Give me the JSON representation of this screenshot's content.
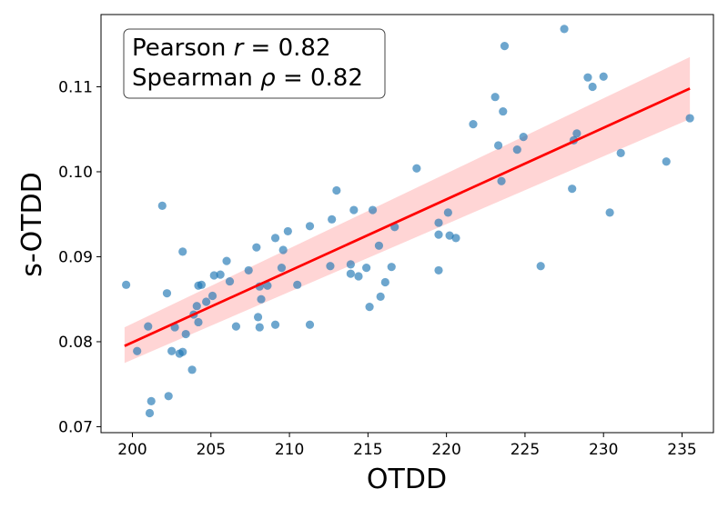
{
  "chart_data": {
    "type": "scatter",
    "title": "",
    "xlabel": "OTDD",
    "ylabel": "s-OTDD",
    "xlim": [
      198,
      237
    ],
    "ylim": [
      0.0693,
      0.1185
    ],
    "xticks": [
      200,
      205,
      210,
      215,
      220,
      225,
      230,
      235
    ],
    "yticks": [
      0.07,
      0.08,
      0.09,
      0.1,
      0.11
    ],
    "ytick_labels": [
      "0.07",
      "0.08",
      "0.09",
      "0.10",
      "0.11"
    ],
    "grid": false,
    "colors": {
      "points": "#1f77b4",
      "fit_line": "#ff0000",
      "confidence_band": "#ffb3b3"
    },
    "annotation": {
      "lines": [
        "Pearson r = 0.82",
        "Spearman ρ = 0.82"
      ],
      "pearson_prefix": "Pearson ",
      "pearson_symbol": "r",
      "pearson_value": " = 0.82",
      "spearman_prefix": "Spearman ",
      "spearman_symbol": "ρ",
      "spearman_value": " = 0.82",
      "placement": "top-left"
    },
    "fit": {
      "x": [
        199.5,
        235.5
      ],
      "y": [
        0.0795,
        0.1098
      ],
      "ci_lower": [
        0.0775,
        0.1062
      ],
      "ci_upper": [
        0.0817,
        0.1135
      ]
    },
    "points": [
      [
        199.6,
        0.0867
      ],
      [
        200.3,
        0.0789
      ],
      [
        201.0,
        0.0818
      ],
      [
        201.2,
        0.073
      ],
      [
        201.1,
        0.0716
      ],
      [
        201.9,
        0.096
      ],
      [
        202.2,
        0.0857
      ],
      [
        202.3,
        0.0736
      ],
      [
        202.5,
        0.0789
      ],
      [
        202.7,
        0.0817
      ],
      [
        203.0,
        0.0786
      ],
      [
        203.2,
        0.0788
      ],
      [
        203.2,
        0.0906
      ],
      [
        203.4,
        0.0809
      ],
      [
        203.8,
        0.0767
      ],
      [
        203.9,
        0.0832
      ],
      [
        204.1,
        0.0842
      ],
      [
        204.2,
        0.0823
      ],
      [
        204.2,
        0.0866
      ],
      [
        204.4,
        0.0867
      ],
      [
        204.7,
        0.0847
      ],
      [
        205.1,
        0.0854
      ],
      [
        205.2,
        0.0878
      ],
      [
        205.6,
        0.0879
      ],
      [
        206.0,
        0.0895
      ],
      [
        206.2,
        0.0871
      ],
      [
        206.6,
        0.0818
      ],
      [
        207.4,
        0.0884
      ],
      [
        207.9,
        0.0911
      ],
      [
        208.0,
        0.0829
      ],
      [
        208.1,
        0.0817
      ],
      [
        208.1,
        0.0865
      ],
      [
        208.2,
        0.085
      ],
      [
        208.6,
        0.0866
      ],
      [
        209.1,
        0.082
      ],
      [
        209.1,
        0.0922
      ],
      [
        209.5,
        0.0887
      ],
      [
        209.6,
        0.0908
      ],
      [
        209.9,
        0.093
      ],
      [
        210.5,
        0.0867
      ],
      [
        211.3,
        0.0936
      ],
      [
        211.3,
        0.082
      ],
      [
        212.6,
        0.0889
      ],
      [
        212.7,
        0.0944
      ],
      [
        213.0,
        0.0978
      ],
      [
        213.9,
        0.088
      ],
      [
        213.9,
        0.0891
      ],
      [
        214.1,
        0.0955
      ],
      [
        214.4,
        0.0877
      ],
      [
        214.9,
        0.0887
      ],
      [
        215.1,
        0.0841
      ],
      [
        215.3,
        0.0955
      ],
      [
        215.7,
        0.0913
      ],
      [
        215.8,
        0.0853
      ],
      [
        216.1,
        0.087
      ],
      [
        216.5,
        0.0888
      ],
      [
        216.7,
        0.0935
      ],
      [
        218.1,
        0.1004
      ],
      [
        219.5,
        0.0884
      ],
      [
        219.5,
        0.094
      ],
      [
        219.5,
        0.0926
      ],
      [
        220.1,
        0.0952
      ],
      [
        220.2,
        0.0925
      ],
      [
        220.6,
        0.0922
      ],
      [
        221.7,
        0.1056
      ],
      [
        223.1,
        0.1088
      ],
      [
        223.3,
        0.1031
      ],
      [
        223.5,
        0.0989
      ],
      [
        223.6,
        0.1071
      ],
      [
        223.7,
        0.1148
      ],
      [
        224.5,
        0.1026
      ],
      [
        224.9,
        0.1041
      ],
      [
        226.0,
        0.0889
      ],
      [
        227.5,
        0.1168
      ],
      [
        228.0,
        0.098
      ],
      [
        228.1,
        0.1037
      ],
      [
        228.3,
        0.1045
      ],
      [
        229.0,
        0.1111
      ],
      [
        229.3,
        0.11
      ],
      [
        230.0,
        0.1112
      ],
      [
        230.4,
        0.0952
      ],
      [
        231.1,
        0.1022
      ],
      [
        234.0,
        0.1012
      ],
      [
        235.5,
        0.1063
      ]
    ]
  }
}
